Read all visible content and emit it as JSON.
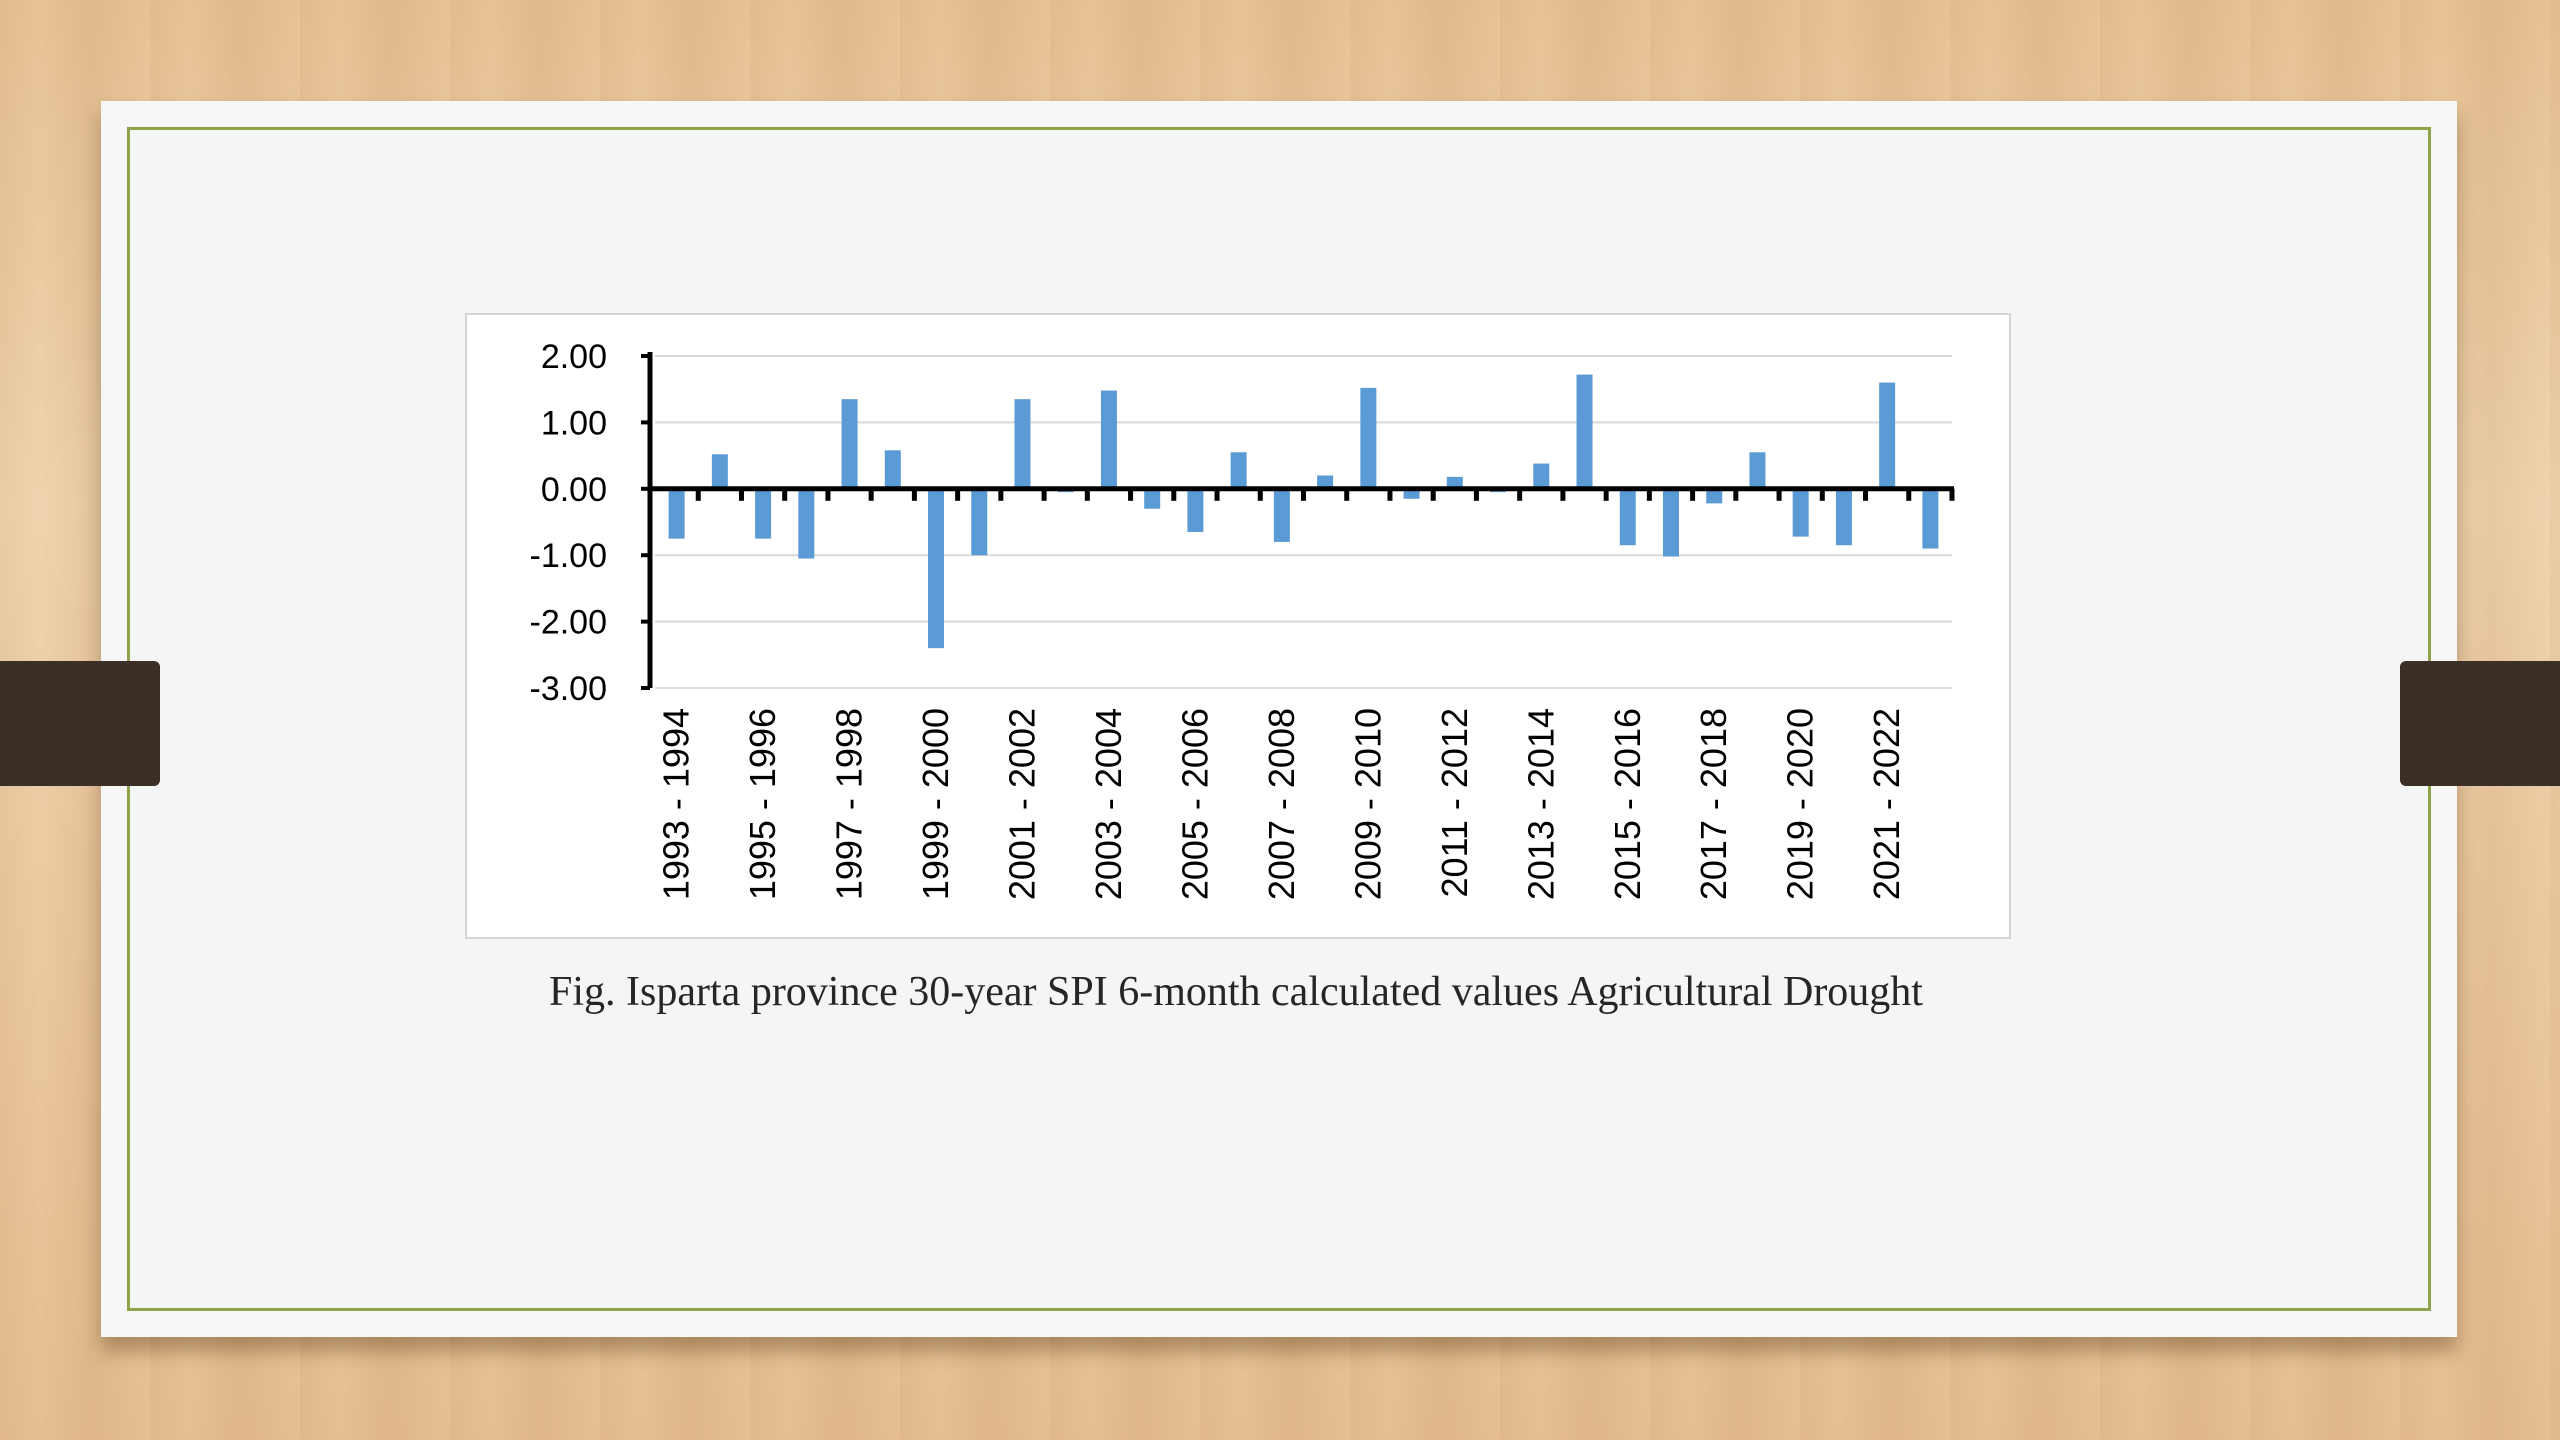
{
  "caption": "Fig. Isparta province 30-year SPI 6-month calculated values Agricultural Drought",
  "colors": {
    "bar": "#5b9bd5",
    "axis": "#000000",
    "grid": "#d9d9d9"
  },
  "chart_data": {
    "type": "bar",
    "title": "",
    "xlabel": "",
    "ylabel": "",
    "ylim": [
      -3,
      2
    ],
    "yticks": [
      "2.00",
      "1.00",
      "0.00",
      "-1.00",
      "-2.00",
      "-3.00"
    ],
    "grid": true,
    "tick_labels": [
      "1993 - 1994",
      "1995 - 1996",
      "1997 - 1998",
      "1999 - 2000",
      "2001 - 2002",
      "2003 - 2004",
      "2005 - 2006",
      "2007 - 2008",
      "2009 - 2010",
      "2011 - 2012",
      "2013 - 2014",
      "2015 - 2016",
      "2017 - 2018",
      "2019 - 2020",
      "2021 - 2022"
    ],
    "values": [
      -0.75,
      0.52,
      -0.75,
      -1.05,
      1.35,
      0.58,
      -2.4,
      -1.0,
      1.35,
      -0.05,
      1.48,
      -0.3,
      -0.65,
      0.55,
      -0.8,
      0.2,
      1.52,
      -0.15,
      0.18,
      -0.05,
      0.38,
      1.72,
      -0.85,
      -1.02,
      -0.22,
      0.55,
      -0.72,
      -0.85,
      1.6,
      -0.9
    ]
  }
}
